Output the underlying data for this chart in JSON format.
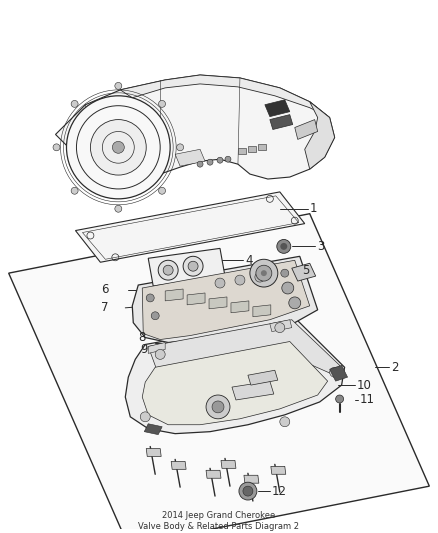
{
  "title": "2014 Jeep Grand Cherokee\nValve Body & Related Parts Diagram 2",
  "background_color": "#ffffff",
  "line_color": "#2a2a2a",
  "label_color": "#2a2a2a",
  "fig_width": 4.38,
  "fig_height": 5.33,
  "dpi": 100
}
